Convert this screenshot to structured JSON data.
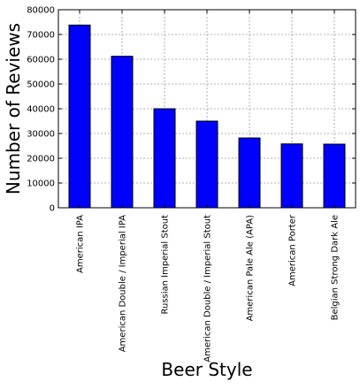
{
  "chart_data": {
    "type": "bar",
    "title": "",
    "xlabel": "Beer Style",
    "ylabel": "Number of Reviews",
    "categories": [
      "American IPA",
      "American Double / Imperial IPA",
      "Russian Imperial Stout",
      "American Double / Imperial Stout",
      "American Pale Ale (APA)",
      "American Porter",
      "Belgian Strong Dark Ale"
    ],
    "values": [
      73800,
      61200,
      40000,
      35000,
      28200,
      25800,
      25700
    ],
    "ylim": [
      0,
      80000
    ],
    "yticks": [
      "0",
      "10000",
      "20000",
      "30000",
      "40000",
      "50000",
      "60000",
      "70000",
      "80000"
    ],
    "grid": true,
    "bar_color": "#0000ff",
    "edge_color": "#000000"
  }
}
